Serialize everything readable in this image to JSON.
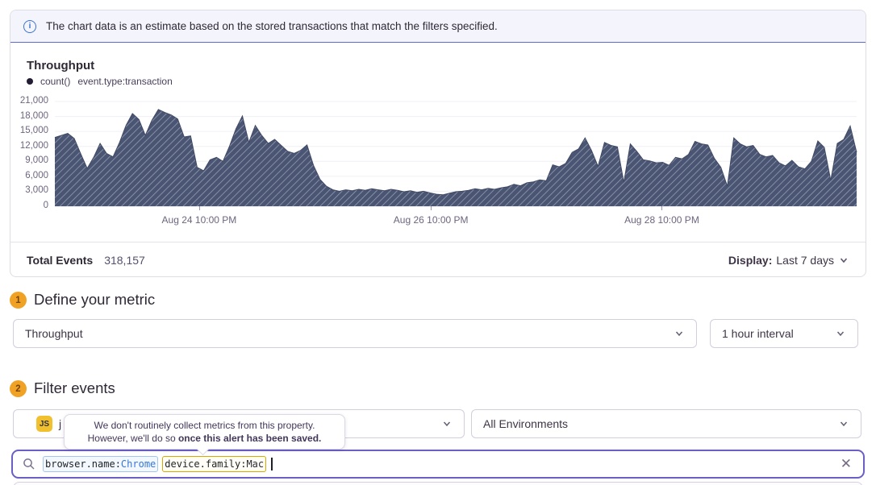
{
  "banner": {
    "icon": "info-icon",
    "text": "The chart data is an estimate based on the stored transactions that match the filters specified."
  },
  "chart": {
    "title": "Throughput",
    "legend": {
      "dot": "series-dot",
      "aggregate": "count()",
      "filter": "event.type:transaction"
    },
    "chart_data": {
      "type": "area",
      "title": "Throughput",
      "series": [
        {
          "name": "count()",
          "values": [
            13800,
            14200,
            14600,
            13600,
            10500,
            7600,
            9800,
            12600,
            10600,
            9900,
            12800,
            16200,
            18600,
            17400,
            14200,
            17200,
            19400,
            18800,
            18300,
            17500,
            13900,
            14100,
            7800,
            7100,
            9300,
            9800,
            9000,
            12000,
            15500,
            18100,
            12800,
            16200,
            14200,
            12600,
            13400,
            12200,
            11000,
            10600,
            11200,
            12300,
            8200,
            5400,
            4000,
            3300,
            3000,
            3300,
            3100,
            3400,
            3200,
            3500,
            3300,
            3100,
            3400,
            3200,
            2900,
            3100,
            2800,
            3000,
            2700,
            2400,
            2300,
            2600,
            2900,
            3000,
            3200,
            3500,
            3300,
            3600,
            3400,
            3700,
            3900,
            4400,
            4100,
            4700,
            4900,
            5300,
            5100,
            8300,
            7900,
            8600,
            10800,
            11500,
            13700,
            11200,
            8000,
            12800,
            12200,
            11900,
            4800,
            12500,
            11000,
            9300,
            9100,
            8700,
            8800,
            8200,
            9800,
            9500,
            10400,
            13000,
            12500,
            12300,
            9600,
            7800,
            4000,
            13700,
            12500,
            11900,
            12200,
            10400,
            9900,
            10200,
            8700,
            8100,
            9200,
            7900,
            7500,
            9000,
            13100,
            11800,
            5200,
            12600,
            13400,
            16100,
            10800
          ]
        }
      ],
      "ylim": [
        0,
        21000
      ],
      "y_ticks": [
        0,
        3000,
        6000,
        9000,
        12000,
        15000,
        18000,
        21000
      ],
      "x_ticks": [
        {
          "label": "Aug 24 10:00 PM",
          "pos": 0.18
        },
        {
          "label": "Aug 26 10:00 PM",
          "pos": 0.469
        },
        {
          "label": "Aug 28 10:00 PM",
          "pos": 0.757
        }
      ],
      "grid": true,
      "hatch": true,
      "legend_position": "top-left"
    },
    "footer": {
      "total_label": "Total Events",
      "total_value": "318,157",
      "display_label": "Display:",
      "display_value": "Last 7 days"
    }
  },
  "sections": {
    "metric": {
      "step": "1",
      "heading": "Define your metric",
      "metric_select": "Throughput",
      "interval_select": "1 hour interval"
    },
    "filter": {
      "step": "2",
      "heading": "Filter events",
      "project_badge": "JS",
      "project_visible_text": "j",
      "environment_select": "All Environments"
    }
  },
  "tooltip": {
    "line1": "We don't routinely collect metrics from this property.",
    "line2_prefix": "However, we'll do so ",
    "line2_bold": "once this alert has been saved."
  },
  "search": {
    "tokens": [
      {
        "key": "browser.name:",
        "value": "Chrome"
      },
      {
        "key": "device.family:",
        "value": "Mac"
      }
    ],
    "clear_icon": "✕"
  },
  "colors": {
    "accent_purple": "#6a5ec7",
    "banner_border_blue": "#5f6ad0",
    "info_blue": "#3b72d4",
    "step_badge_amber": "#f0a225",
    "chart_fill_slate": "#4a5574",
    "token_blue": "#3577d8",
    "token_amber_border": "#d9a800",
    "js_badge_yellow": "#f0c02e"
  }
}
